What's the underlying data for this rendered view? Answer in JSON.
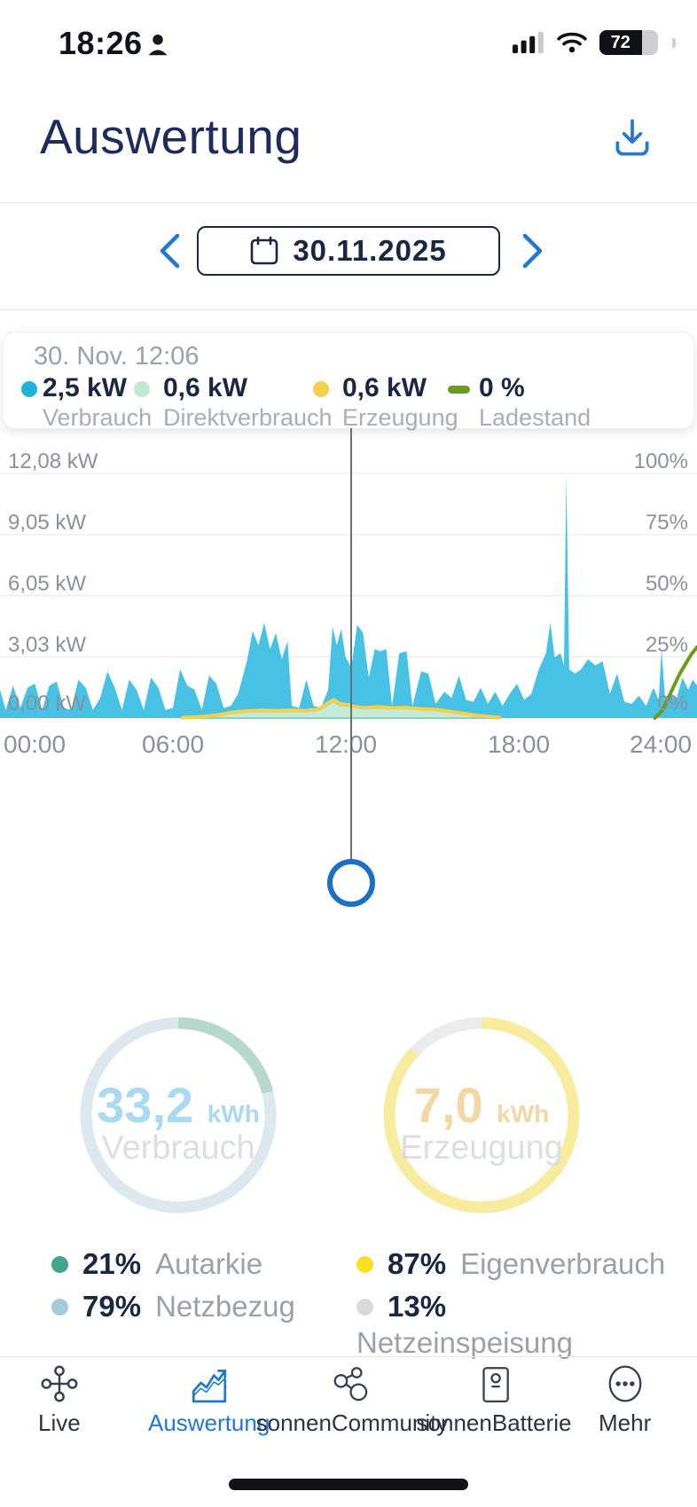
{
  "status_bar": {
    "time": "18:26",
    "battery_percent": "72"
  },
  "header": {
    "title": "Auswertung"
  },
  "date_nav": {
    "date": "30.11.2025"
  },
  "tooltip": {
    "timestamp": "30. Nov. 12:06",
    "items": [
      {
        "value": "2,5 kW",
        "label": "Verbrauch",
        "color": "#1fb3dc",
        "shape": "dot"
      },
      {
        "value": "0,6 kW",
        "label": "Direktverbrauch",
        "color": "#bfe9d4",
        "shape": "dot"
      },
      {
        "value": "0,6 kW",
        "label": "Erzeugung",
        "color": "#f6cf4b",
        "shape": "dot"
      },
      {
        "value": "0 %",
        "label": "Ladestand",
        "color": "#6d9c1a",
        "shape": "dash"
      }
    ]
  },
  "chart_data": {
    "type": "area",
    "x_unit": "hours",
    "x_range": [
      0,
      24
    ],
    "x_ticks": [
      "00:00",
      "06:00",
      "12:00",
      "18:00",
      "24:00"
    ],
    "y_left_ticks": [
      "12,08 kW",
      "9,05 kW",
      "6,05 kW",
      "3,03 kW",
      "0,00 kW"
    ],
    "y_right_ticks": [
      "100%",
      "75%",
      "50%",
      "25%",
      "0%"
    ],
    "y_left_max_kw": 12.08,
    "y_right_max_percent": 100,
    "grid": true,
    "cursor_time_hours": 12.1,
    "series": [
      {
        "name": "Verbrauch",
        "unit": "kW",
        "axis": "left",
        "style": "area",
        "color": "#47c1e4",
        "points": [
          [
            0,
            1.4
          ],
          [
            0.2,
            0.4
          ],
          [
            0.45,
            1.6
          ],
          [
            0.7,
            0.5
          ],
          [
            0.95,
            1.5
          ],
          [
            1.2,
            1.7
          ],
          [
            1.45,
            0.4
          ],
          [
            1.7,
            1.6
          ],
          [
            1.95,
            1.8
          ],
          [
            2.2,
            0.5
          ],
          [
            2.45,
            0.4
          ],
          [
            2.7,
            1.9
          ],
          [
            2.95,
            1.5
          ],
          [
            3.2,
            0.4
          ],
          [
            3.45,
            1.0
          ],
          [
            3.7,
            2.3
          ],
          [
            3.95,
            1.5
          ],
          [
            4.2,
            0.4
          ],
          [
            4.45,
            1.9
          ],
          [
            4.7,
            1.4
          ],
          [
            4.95,
            0.4
          ],
          [
            5.2,
            2.0
          ],
          [
            5.45,
            1.5
          ],
          [
            5.7,
            0.4
          ],
          [
            5.95,
            0.5
          ],
          [
            6.2,
            2.4
          ],
          [
            6.45,
            1.6
          ],
          [
            6.7,
            1.4
          ],
          [
            6.95,
            0.4
          ],
          [
            7.2,
            2.1
          ],
          [
            7.45,
            1.7
          ],
          [
            7.7,
            0.5
          ],
          [
            7.95,
            0.6
          ],
          [
            8.2,
            1.2
          ],
          [
            8.5,
            2.8
          ],
          [
            8.7,
            4.3
          ],
          [
            8.9,
            3.6
          ],
          [
            9.1,
            4.7
          ],
          [
            9.3,
            3.4
          ],
          [
            9.5,
            4.2
          ],
          [
            9.7,
            2.9
          ],
          [
            9.9,
            3.8
          ],
          [
            10.05,
            0.6
          ],
          [
            10.3,
            0.5
          ],
          [
            10.55,
            1.9
          ],
          [
            10.8,
            0.6
          ],
          [
            11.05,
            0.5
          ],
          [
            11.3,
            1.4
          ],
          [
            11.45,
            4.5
          ],
          [
            11.6,
            3.6
          ],
          [
            11.75,
            4.4
          ],
          [
            11.9,
            3.0
          ],
          [
            12.1,
            2.5
          ],
          [
            12.3,
            4.6
          ],
          [
            12.5,
            4.2
          ],
          [
            12.7,
            2.0
          ],
          [
            12.9,
            3.4
          ],
          [
            13.1,
            3.3
          ],
          [
            13.3,
            3.4
          ],
          [
            13.5,
            0.6
          ],
          [
            13.75,
            3.2
          ],
          [
            14.0,
            3.3
          ],
          [
            14.2,
            0.6
          ],
          [
            14.5,
            2.3
          ],
          [
            14.75,
            2.2
          ],
          [
            15.0,
            0.7
          ],
          [
            15.3,
            1.3
          ],
          [
            15.55,
            1.0
          ],
          [
            15.8,
            2.1
          ],
          [
            16.05,
            0.9
          ],
          [
            16.3,
            0.8
          ],
          [
            16.55,
            1.5
          ],
          [
            16.8,
            0.7
          ],
          [
            17.05,
            1.3
          ],
          [
            17.3,
            0.6
          ],
          [
            17.55,
            1.2
          ],
          [
            17.8,
            1.7
          ],
          [
            18.05,
            0.9
          ],
          [
            18.3,
            1.2
          ],
          [
            18.55,
            2.4
          ],
          [
            18.8,
            3.2
          ],
          [
            18.95,
            4.7
          ],
          [
            19.1,
            3.0
          ],
          [
            19.3,
            3.2
          ],
          [
            19.42,
            2.6
          ],
          [
            19.5,
            11.9
          ],
          [
            19.6,
            2.4
          ],
          [
            19.8,
            2.2
          ],
          [
            20.0,
            2.4
          ],
          [
            20.25,
            2.9
          ],
          [
            20.5,
            2.6
          ],
          [
            20.75,
            2.8
          ],
          [
            21.0,
            1.2
          ],
          [
            21.25,
            2.2
          ],
          [
            21.5,
            0.8
          ],
          [
            21.75,
            0.7
          ],
          [
            22.0,
            1.1
          ],
          [
            22.25,
            0.6
          ],
          [
            22.5,
            1.5
          ],
          [
            22.68,
            0.9
          ],
          [
            22.78,
            3.4
          ],
          [
            22.9,
            1.0
          ],
          [
            23.1,
            1.2
          ],
          [
            23.3,
            1.0
          ],
          [
            23.5,
            2.0
          ],
          [
            23.7,
            1.4
          ],
          [
            23.85,
            1.9
          ],
          [
            24,
            1.6
          ]
        ]
      },
      {
        "name": "Direktverbrauch",
        "unit": "kW",
        "axis": "left",
        "style": "area",
        "color": "#c3ebd9",
        "edge_color": "#8ed3b5",
        "points": [
          [
            6.2,
            0
          ],
          [
            7,
            0.06
          ],
          [
            7.5,
            0.12
          ],
          [
            8,
            0.24
          ],
          [
            8.5,
            0.3
          ],
          [
            9,
            0.33
          ],
          [
            9.5,
            0.31
          ],
          [
            10,
            0.33
          ],
          [
            10.5,
            0.31
          ],
          [
            11,
            0.4
          ],
          [
            11.3,
            0.68
          ],
          [
            11.5,
            0.82
          ],
          [
            11.7,
            0.64
          ],
          [
            12,
            0.6
          ],
          [
            12.1,
            0.6
          ],
          [
            12.5,
            0.46
          ],
          [
            13,
            0.5
          ],
          [
            13.5,
            0.46
          ],
          [
            14,
            0.48
          ],
          [
            14.5,
            0.42
          ],
          [
            15,
            0.38
          ],
          [
            15.5,
            0.28
          ],
          [
            16,
            0.18
          ],
          [
            16.5,
            0.1
          ],
          [
            17,
            0.04
          ],
          [
            17.2,
            0
          ]
        ]
      },
      {
        "name": "Erzeugung",
        "unit": "kW",
        "axis": "left",
        "style": "line",
        "color": "#f6cf4b",
        "points": [
          [
            6.3,
            0.02
          ],
          [
            7,
            0.08
          ],
          [
            7.5,
            0.15
          ],
          [
            8,
            0.28
          ],
          [
            8.5,
            0.35
          ],
          [
            9,
            0.38
          ],
          [
            9.5,
            0.36
          ],
          [
            10,
            0.38
          ],
          [
            10.5,
            0.36
          ],
          [
            11,
            0.45
          ],
          [
            11.3,
            0.75
          ],
          [
            11.5,
            0.9
          ],
          [
            11.7,
            0.7
          ],
          [
            12,
            0.65
          ],
          [
            12.1,
            0.6
          ],
          [
            12.5,
            0.5
          ],
          [
            13,
            0.55
          ],
          [
            13.5,
            0.5
          ],
          [
            14,
            0.52
          ],
          [
            14.5,
            0.45
          ],
          [
            15,
            0.42
          ],
          [
            15.5,
            0.32
          ],
          [
            16,
            0.22
          ],
          [
            16.5,
            0.12
          ],
          [
            17,
            0.05
          ],
          [
            17.2,
            0.02
          ]
        ]
      },
      {
        "name": "Ladestand",
        "unit": "%",
        "axis": "right",
        "style": "line",
        "color": "#6d9c1a",
        "points": [
          [
            22.55,
            0
          ],
          [
            22.8,
            3
          ],
          [
            23.0,
            8
          ],
          [
            23.2,
            13
          ],
          [
            23.4,
            18
          ],
          [
            23.6,
            22
          ],
          [
            23.8,
            26
          ],
          [
            24,
            29
          ]
        ]
      }
    ]
  },
  "summary_gauges": [
    {
      "value": "33,2",
      "unit": "kWh",
      "label": "Verbrauch",
      "percent": 21,
      "arc_color": "#b7d9cb",
      "rest_color": "#dde9ef",
      "value_color": "#a9daf0"
    },
    {
      "value": "7,0",
      "unit": "kWh",
      "label": "Erzeugung",
      "percent": 87,
      "arc_color": "#f8ec9e",
      "rest_color": "#ececec",
      "value_color": "#f1d8a4"
    }
  ],
  "stats": [
    {
      "percent": "21%",
      "label": "Autarkie",
      "color": "#44a38a"
    },
    {
      "percent": "79%",
      "label": "Netzbezug",
      "color": "#a6cbd8"
    },
    {
      "percent": "87%",
      "label": "Eigenverbrauch",
      "color": "#f6e222"
    },
    {
      "percent": "13%",
      "label": "Netzeinspeisung",
      "color": "#dadada"
    }
  ],
  "tab_bar": {
    "items": [
      {
        "label": "Live"
      },
      {
        "label": "Auswertung",
        "active": true
      },
      {
        "label": "sonnenCommunity"
      },
      {
        "label": "sonnenBatterie"
      },
      {
        "label": "Mehr"
      }
    ]
  }
}
